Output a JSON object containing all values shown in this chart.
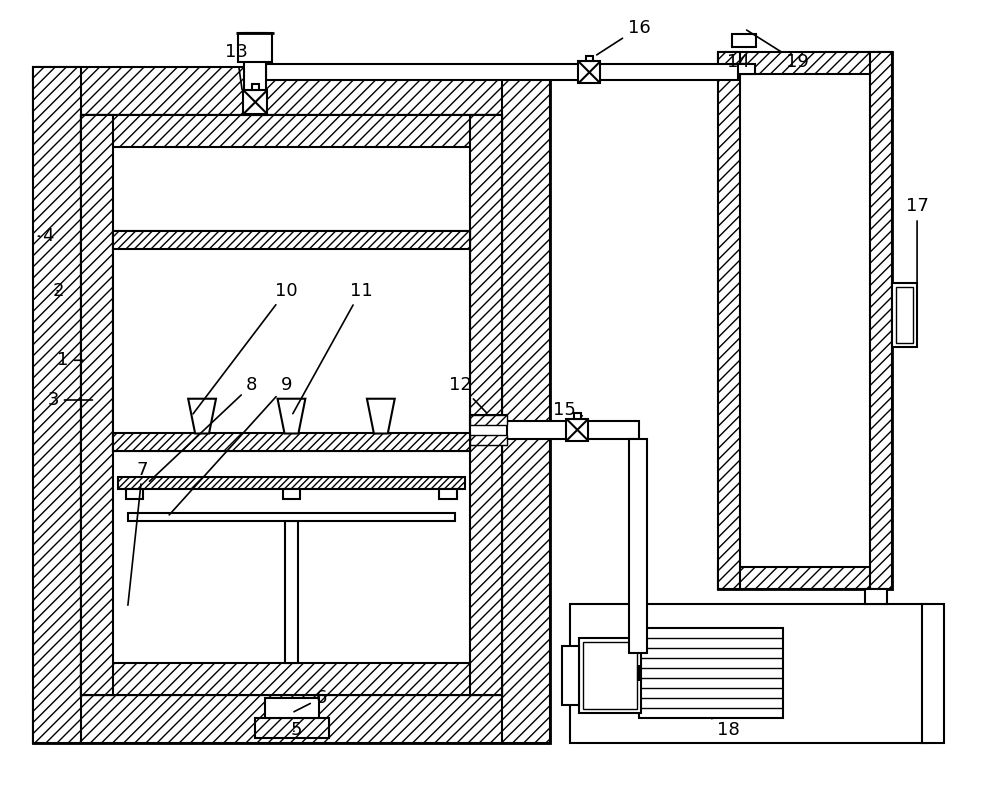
{
  "bg_color": "#ffffff",
  "line_color": "#000000",
  "fig_width": 10,
  "fig_height": 8
}
